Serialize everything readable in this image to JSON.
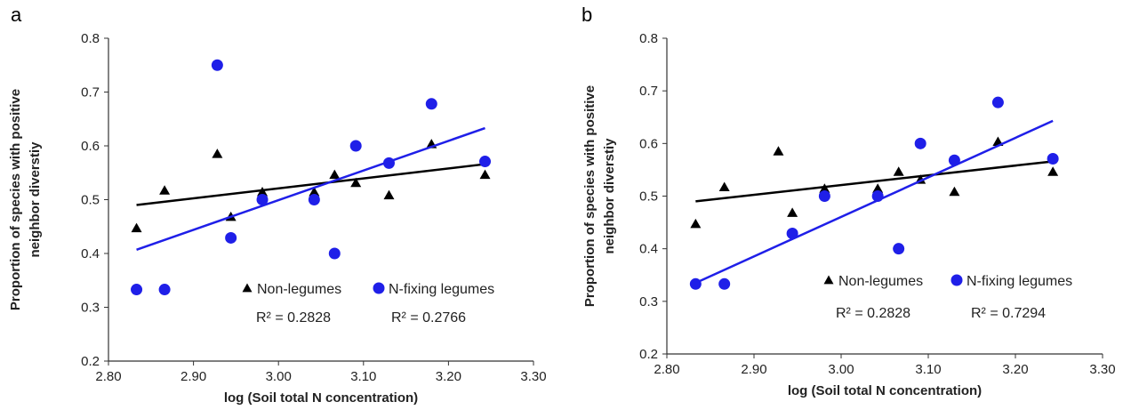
{
  "chart_data": [
    {
      "type": "scatter",
      "panel_label": "a",
      "xlabel": "log (Soil total N concentration)",
      "ylabel_line1": "Proportion of species with positive",
      "ylabel_line2": "neighbor  diverstiy",
      "xlim": [
        2.8,
        3.3
      ],
      "ylim": [
        0.2,
        0.8
      ],
      "x_ticks": [
        "2.80",
        "2.90",
        "3.00",
        "3.10",
        "3.20",
        "3.30"
      ],
      "y_ticks": [
        "0.2",
        "0.3",
        "0.4",
        "0.5",
        "0.6",
        "0.7",
        "0.8"
      ],
      "series": [
        {
          "name": "Non-legumes",
          "marker": "triangle",
          "color": "#000000",
          "points": [
            [
              2.833,
              0.447
            ],
            [
              2.866,
              0.517
            ],
            [
              2.928,
              0.585
            ],
            [
              2.944,
              0.468
            ],
            [
              2.981,
              0.514
            ],
            [
              3.042,
              0.514
            ],
            [
              3.066,
              0.546
            ],
            [
              3.091,
              0.531
            ],
            [
              3.13,
              0.508
            ],
            [
              3.18,
              0.603
            ],
            [
              3.243,
              0.546
            ]
          ],
          "trendline": [
            [
              2.833,
              0.49
            ],
            [
              3.243,
              0.566
            ]
          ],
          "r2": "R² = 0.2828"
        },
        {
          "name": "N-fixing legumes",
          "marker": "circle",
          "color": "#1f1fe8",
          "points": [
            [
              2.833,
              0.333
            ],
            [
              2.866,
              0.333
            ],
            [
              2.928,
              0.75
            ],
            [
              2.944,
              0.429
            ],
            [
              2.981,
              0.5
            ],
            [
              3.042,
              0.5
            ],
            [
              3.066,
              0.4
            ],
            [
              3.091,
              0.6
            ],
            [
              3.13,
              0.568
            ],
            [
              3.18,
              0.678
            ],
            [
              3.243,
              0.571
            ]
          ],
          "trendline": [
            [
              2.833,
              0.407
            ],
            [
              3.243,
              0.633
            ]
          ],
          "r2": "R² = 0.2766"
        }
      ],
      "grid": false,
      "legend_position": "bottom-right"
    },
    {
      "type": "scatter",
      "panel_label": "b",
      "xlabel": "log (Soil total N concentration)",
      "ylabel_line1": "Proportion of species with positive",
      "ylabel_line2": "neighbor  diverstiy",
      "xlim": [
        2.8,
        3.3
      ],
      "ylim": [
        0.2,
        0.8
      ],
      "x_ticks": [
        "2.80",
        "2.90",
        "3.00",
        "3.10",
        "3.20",
        "3.30"
      ],
      "y_ticks": [
        "0.2",
        "0.3",
        "0.4",
        "0.5",
        "0.6",
        "0.7",
        "0.8"
      ],
      "series": [
        {
          "name": "Non-legumes",
          "marker": "triangle",
          "color": "#000000",
          "points": [
            [
              2.833,
              0.447
            ],
            [
              2.866,
              0.517
            ],
            [
              2.928,
              0.585
            ],
            [
              2.944,
              0.468
            ],
            [
              2.981,
              0.514
            ],
            [
              3.042,
              0.514
            ],
            [
              3.066,
              0.546
            ],
            [
              3.091,
              0.531
            ],
            [
              3.13,
              0.508
            ],
            [
              3.18,
              0.603
            ],
            [
              3.243,
              0.546
            ]
          ],
          "trendline": [
            [
              2.833,
              0.49
            ],
            [
              3.243,
              0.566
            ]
          ],
          "r2": "R² = 0.2828"
        },
        {
          "name": "N-fixing legumes",
          "marker": "circle",
          "color": "#1f1fe8",
          "points": [
            [
              2.833,
              0.333
            ],
            [
              2.866,
              0.333
            ],
            [
              2.981,
              0.5
            ],
            [
              2.944,
              0.429
            ],
            [
              3.042,
              0.5
            ],
            [
              3.066,
              0.4
            ],
            [
              3.091,
              0.6
            ],
            [
              3.13,
              0.568
            ],
            [
              3.18,
              0.678
            ],
            [
              3.243,
              0.571
            ]
          ],
          "trendline": [
            [
              2.833,
              0.335
            ],
            [
              3.243,
              0.643
            ]
          ],
          "r2": "R² = 0.7294"
        }
      ],
      "grid": false,
      "legend_position": "bottom-right"
    }
  ]
}
